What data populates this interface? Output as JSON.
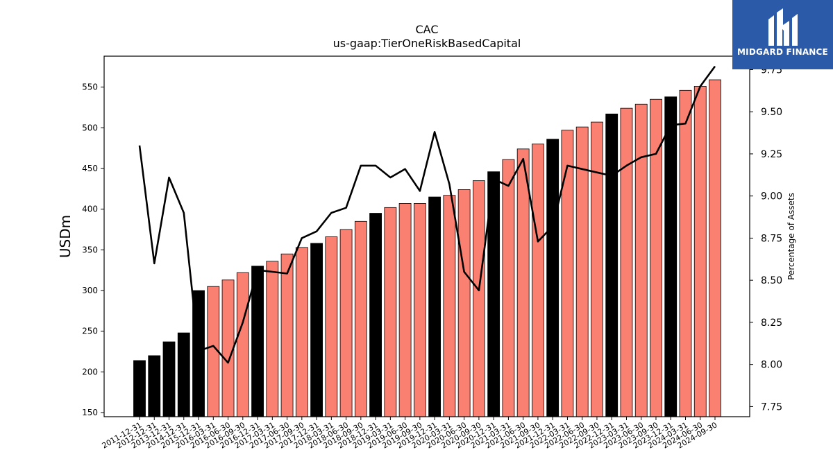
{
  "chart_data": {
    "type": "bar",
    "title": "CAC",
    "subtitle": "us-gaap:TierOneRiskBasedCapital",
    "ylabel": "USDm",
    "y2label": "Percentage of Assets",
    "ylim": [
      145,
      588
    ],
    "y2lim": [
      7.69,
      9.83
    ],
    "yticks": [
      150,
      200,
      250,
      300,
      350,
      400,
      450,
      500,
      550
    ],
    "y2ticks": [
      "7.75",
      "8.00",
      "8.25",
      "8.50",
      "8.75",
      "9.00",
      "9.25",
      "9.50",
      "9.75"
    ],
    "categories": [
      "2011-12-31",
      "2012-12-31",
      "2013-12-31",
      "2014-12-31",
      "2015-12-31",
      "2016-03-31",
      "2016-06-30",
      "2016-09-30",
      "2016-12-31",
      "2017-03-31",
      "2017-06-30",
      "2017-09-30",
      "2017-12-31",
      "2018-03-31",
      "2018-06-30",
      "2018-09-30",
      "2018-12-31",
      "2019-03-31",
      "2019-06-30",
      "2019-09-30",
      "2019-12-31",
      "2020-03-31",
      "2020-06-30",
      "2020-09-30",
      "2020-12-31",
      "2021-03-31",
      "2021-06-30",
      "2021-09-30",
      "2021-12-31",
      "2022-03-31",
      "2022-06-30",
      "2022-09-30",
      "2022-12-31",
      "2023-03-31",
      "2023-06-30",
      "2023-09-30",
      "2023-12-31",
      "2024-03-31",
      "2024-06-30",
      "2024-09-30"
    ],
    "series": [
      {
        "kind": "bar",
        "values": [
          214,
          220,
          237,
          248,
          300,
          305,
          313,
          322,
          330,
          336,
          345,
          353,
          358,
          366,
          375,
          385,
          395,
          402,
          407,
          407,
          415,
          417,
          424,
          435,
          446,
          461,
          474,
          480,
          486,
          497,
          501,
          507,
          517,
          524,
          529,
          535,
          538,
          546,
          551,
          559
        ],
        "colors": [
          "#000000",
          "#000000",
          "#000000",
          "#000000",
          "#000000",
          "#fa8072",
          "#fa8072",
          "#fa8072",
          "#000000",
          "#fa8072",
          "#fa8072",
          "#fa8072",
          "#000000",
          "#fa8072",
          "#fa8072",
          "#fa8072",
          "#000000",
          "#fa8072",
          "#fa8072",
          "#fa8072",
          "#000000",
          "#fa8072",
          "#fa8072",
          "#fa8072",
          "#000000",
          "#fa8072",
          "#fa8072",
          "#fa8072",
          "#000000",
          "#fa8072",
          "#fa8072",
          "#fa8072",
          "#000000",
          "#fa8072",
          "#fa8072",
          "#fa8072",
          "#000000",
          "#fa8072",
          "#fa8072",
          "#fa8072"
        ]
      },
      {
        "kind": "line",
        "axis": "right",
        "color": "#000000",
        "values": [
          9.3,
          8.6,
          9.11,
          8.9,
          8.08,
          8.11,
          8.01,
          8.25,
          8.56,
          8.55,
          8.54,
          8.75,
          8.79,
          8.9,
          8.93,
          9.18,
          9.18,
          9.11,
          9.16,
          9.03,
          9.38,
          9.07,
          8.55,
          8.44,
          9.1,
          9.06,
          9.22,
          8.73,
          8.82,
          9.18,
          9.16,
          9.14,
          9.12,
          9.18,
          9.23,
          9.25,
          9.42,
          9.43,
          9.65,
          9.77
        ]
      }
    ],
    "grid": false,
    "legend": "none"
  },
  "logo": {
    "name": "logo-icon",
    "text": "MIDGARD FINANCE",
    "background": "#2b5aa8"
  }
}
